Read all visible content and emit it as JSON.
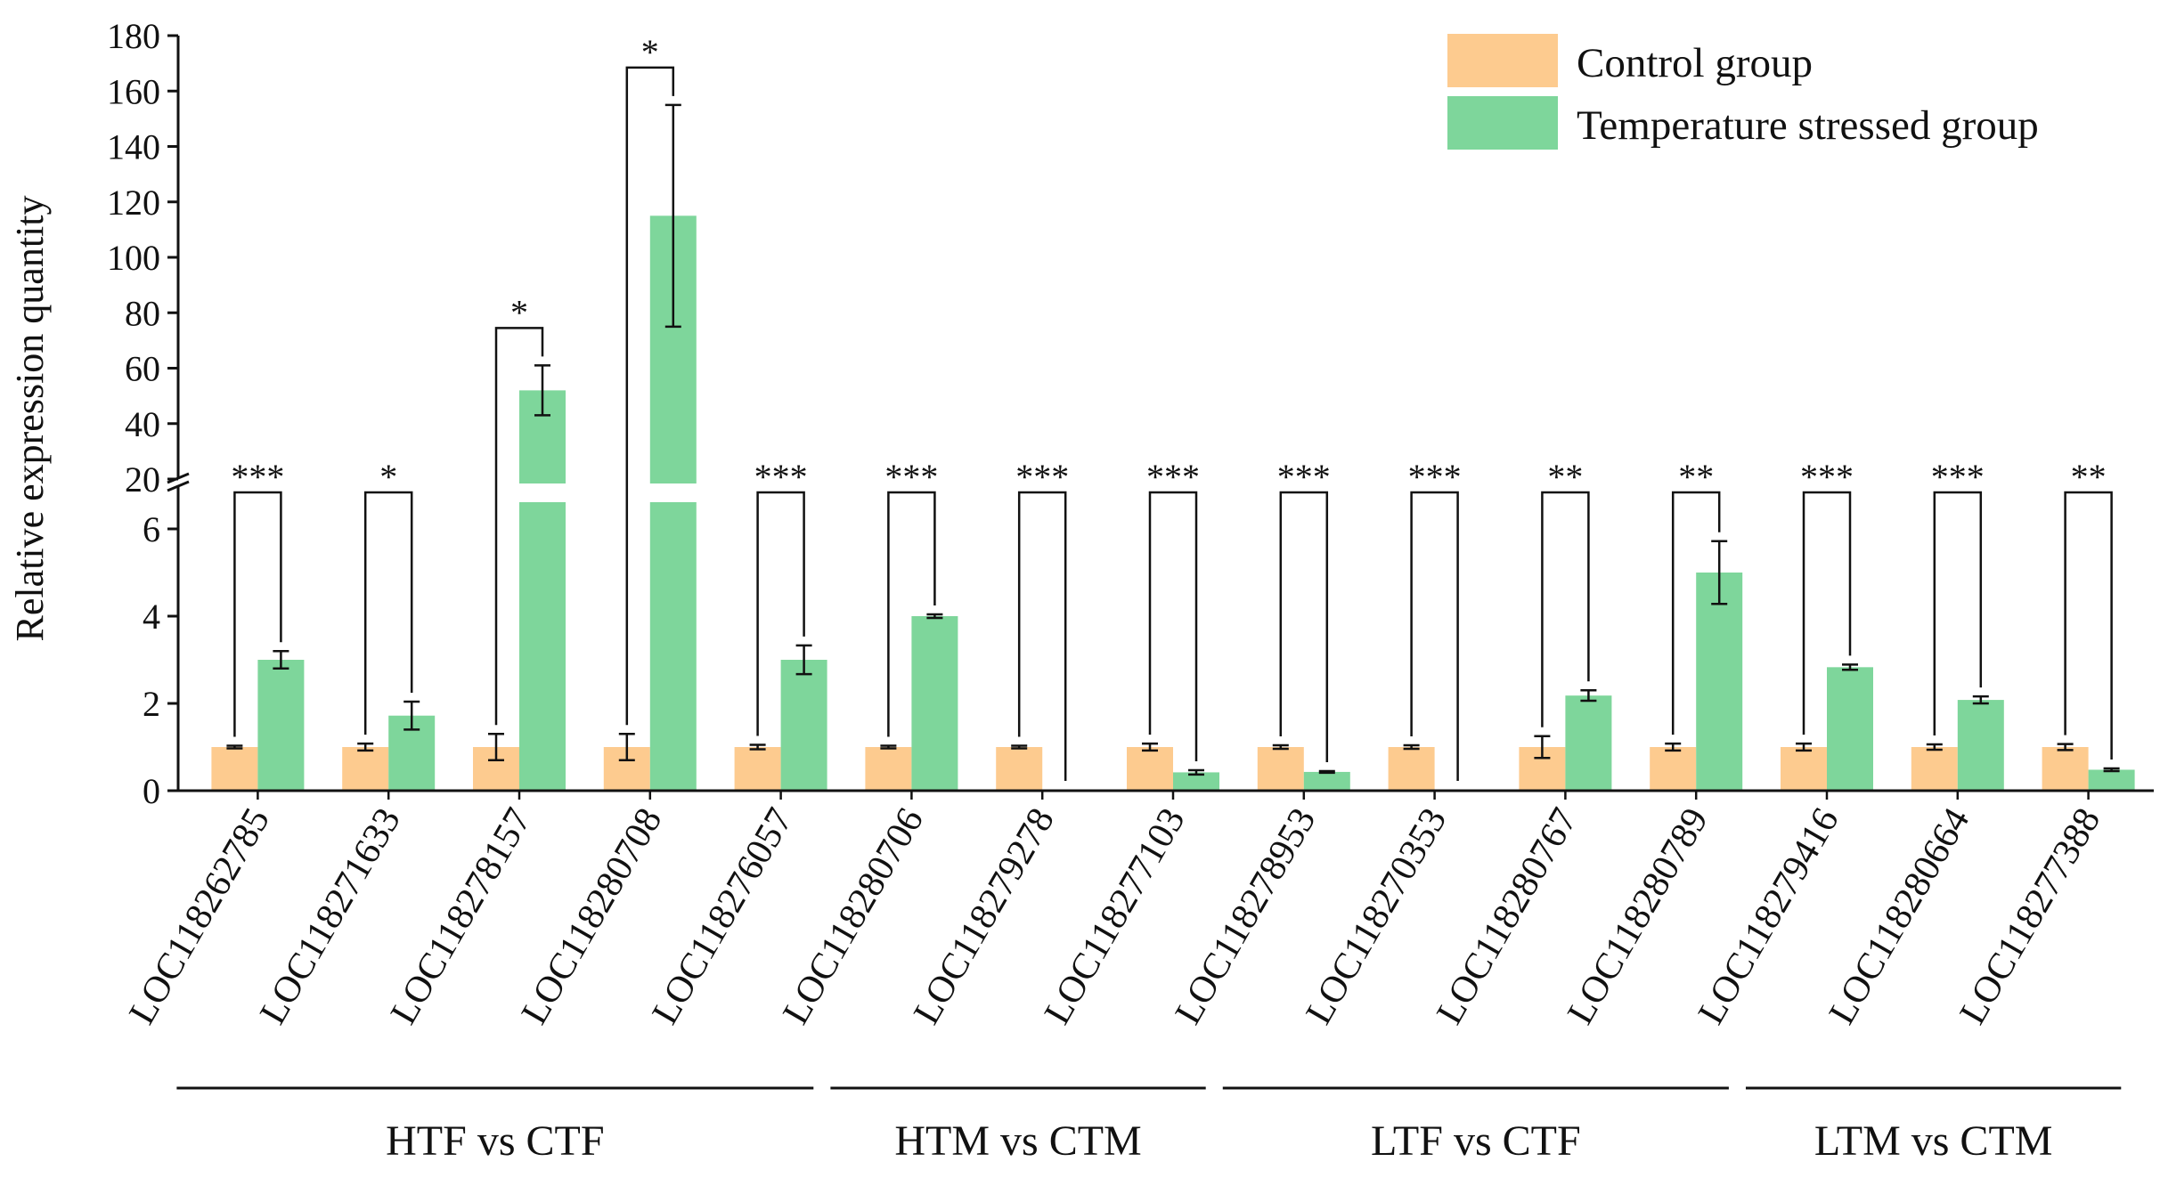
{
  "chart_data": {
    "type": "bar",
    "ylabel": "Relative expression quantity",
    "y_axis_lower": {
      "range": [
        0,
        7
      ],
      "ticks": [
        "0",
        "2",
        "4",
        "6"
      ]
    },
    "y_axis_upper": {
      "range": [
        20,
        180
      ],
      "ticks": [
        "20",
        "40",
        "60",
        "80",
        "100",
        "120",
        "140",
        "160",
        "180"
      ]
    },
    "axis_break": true,
    "legend": {
      "position": "top-right",
      "items": [
        {
          "name": "Control group",
          "color": "#FDCB8F"
        },
        {
          "name": "Temperature stressed group",
          "color": "#7ED69B"
        }
      ]
    },
    "categories": [
      "LOC118262785",
      "LOC118271633",
      "LOC118278157",
      "LOC118280708",
      "LOC118276057",
      "LOC118280706",
      "LOC118279278",
      "LOC118277103",
      "LOC118278953",
      "LOC118270353",
      "LOC118280767",
      "LOC118280789",
      "LOC118279416",
      "LOC118280664",
      "LOC118277388"
    ],
    "series": [
      {
        "name": "Control group",
        "values": [
          1,
          1,
          1,
          1,
          1,
          1,
          1,
          1,
          1,
          1,
          1,
          1,
          1,
          1,
          1
        ],
        "errors": [
          0.03,
          0.08,
          0.3,
          0.3,
          0.05,
          0.03,
          0.03,
          0.08,
          0.04,
          0.04,
          0.25,
          0.08,
          0.08,
          0.06,
          0.07
        ]
      },
      {
        "name": "Temperature stressed group",
        "values": [
          3.0,
          1.72,
          52,
          115,
          3.0,
          4.0,
          0.02,
          0.42,
          0.43,
          0.02,
          2.18,
          5.0,
          2.83,
          2.08,
          0.48
        ],
        "errors": [
          0.2,
          0.32,
          9,
          40,
          0.33,
          0.04,
          0.0,
          0.05,
          0.02,
          0.0,
          0.12,
          0.72,
          0.06,
          0.08,
          0.03
        ]
      }
    ],
    "significance": [
      "***",
      "*",
      "*",
      "*",
      "***",
      "***",
      "***",
      "***",
      "***",
      "***",
      "**",
      "**",
      "***",
      "***",
      "**"
    ],
    "groups": [
      {
        "label": "HTF vs CTF",
        "from": 0,
        "to": 4
      },
      {
        "label": "HTM vs CTM",
        "from": 5,
        "to": 7
      },
      {
        "label": "LTF vs CTF",
        "from": 8,
        "to": 11
      },
      {
        "label": "LTM vs CTM",
        "from": 12,
        "to": 14
      }
    ]
  }
}
